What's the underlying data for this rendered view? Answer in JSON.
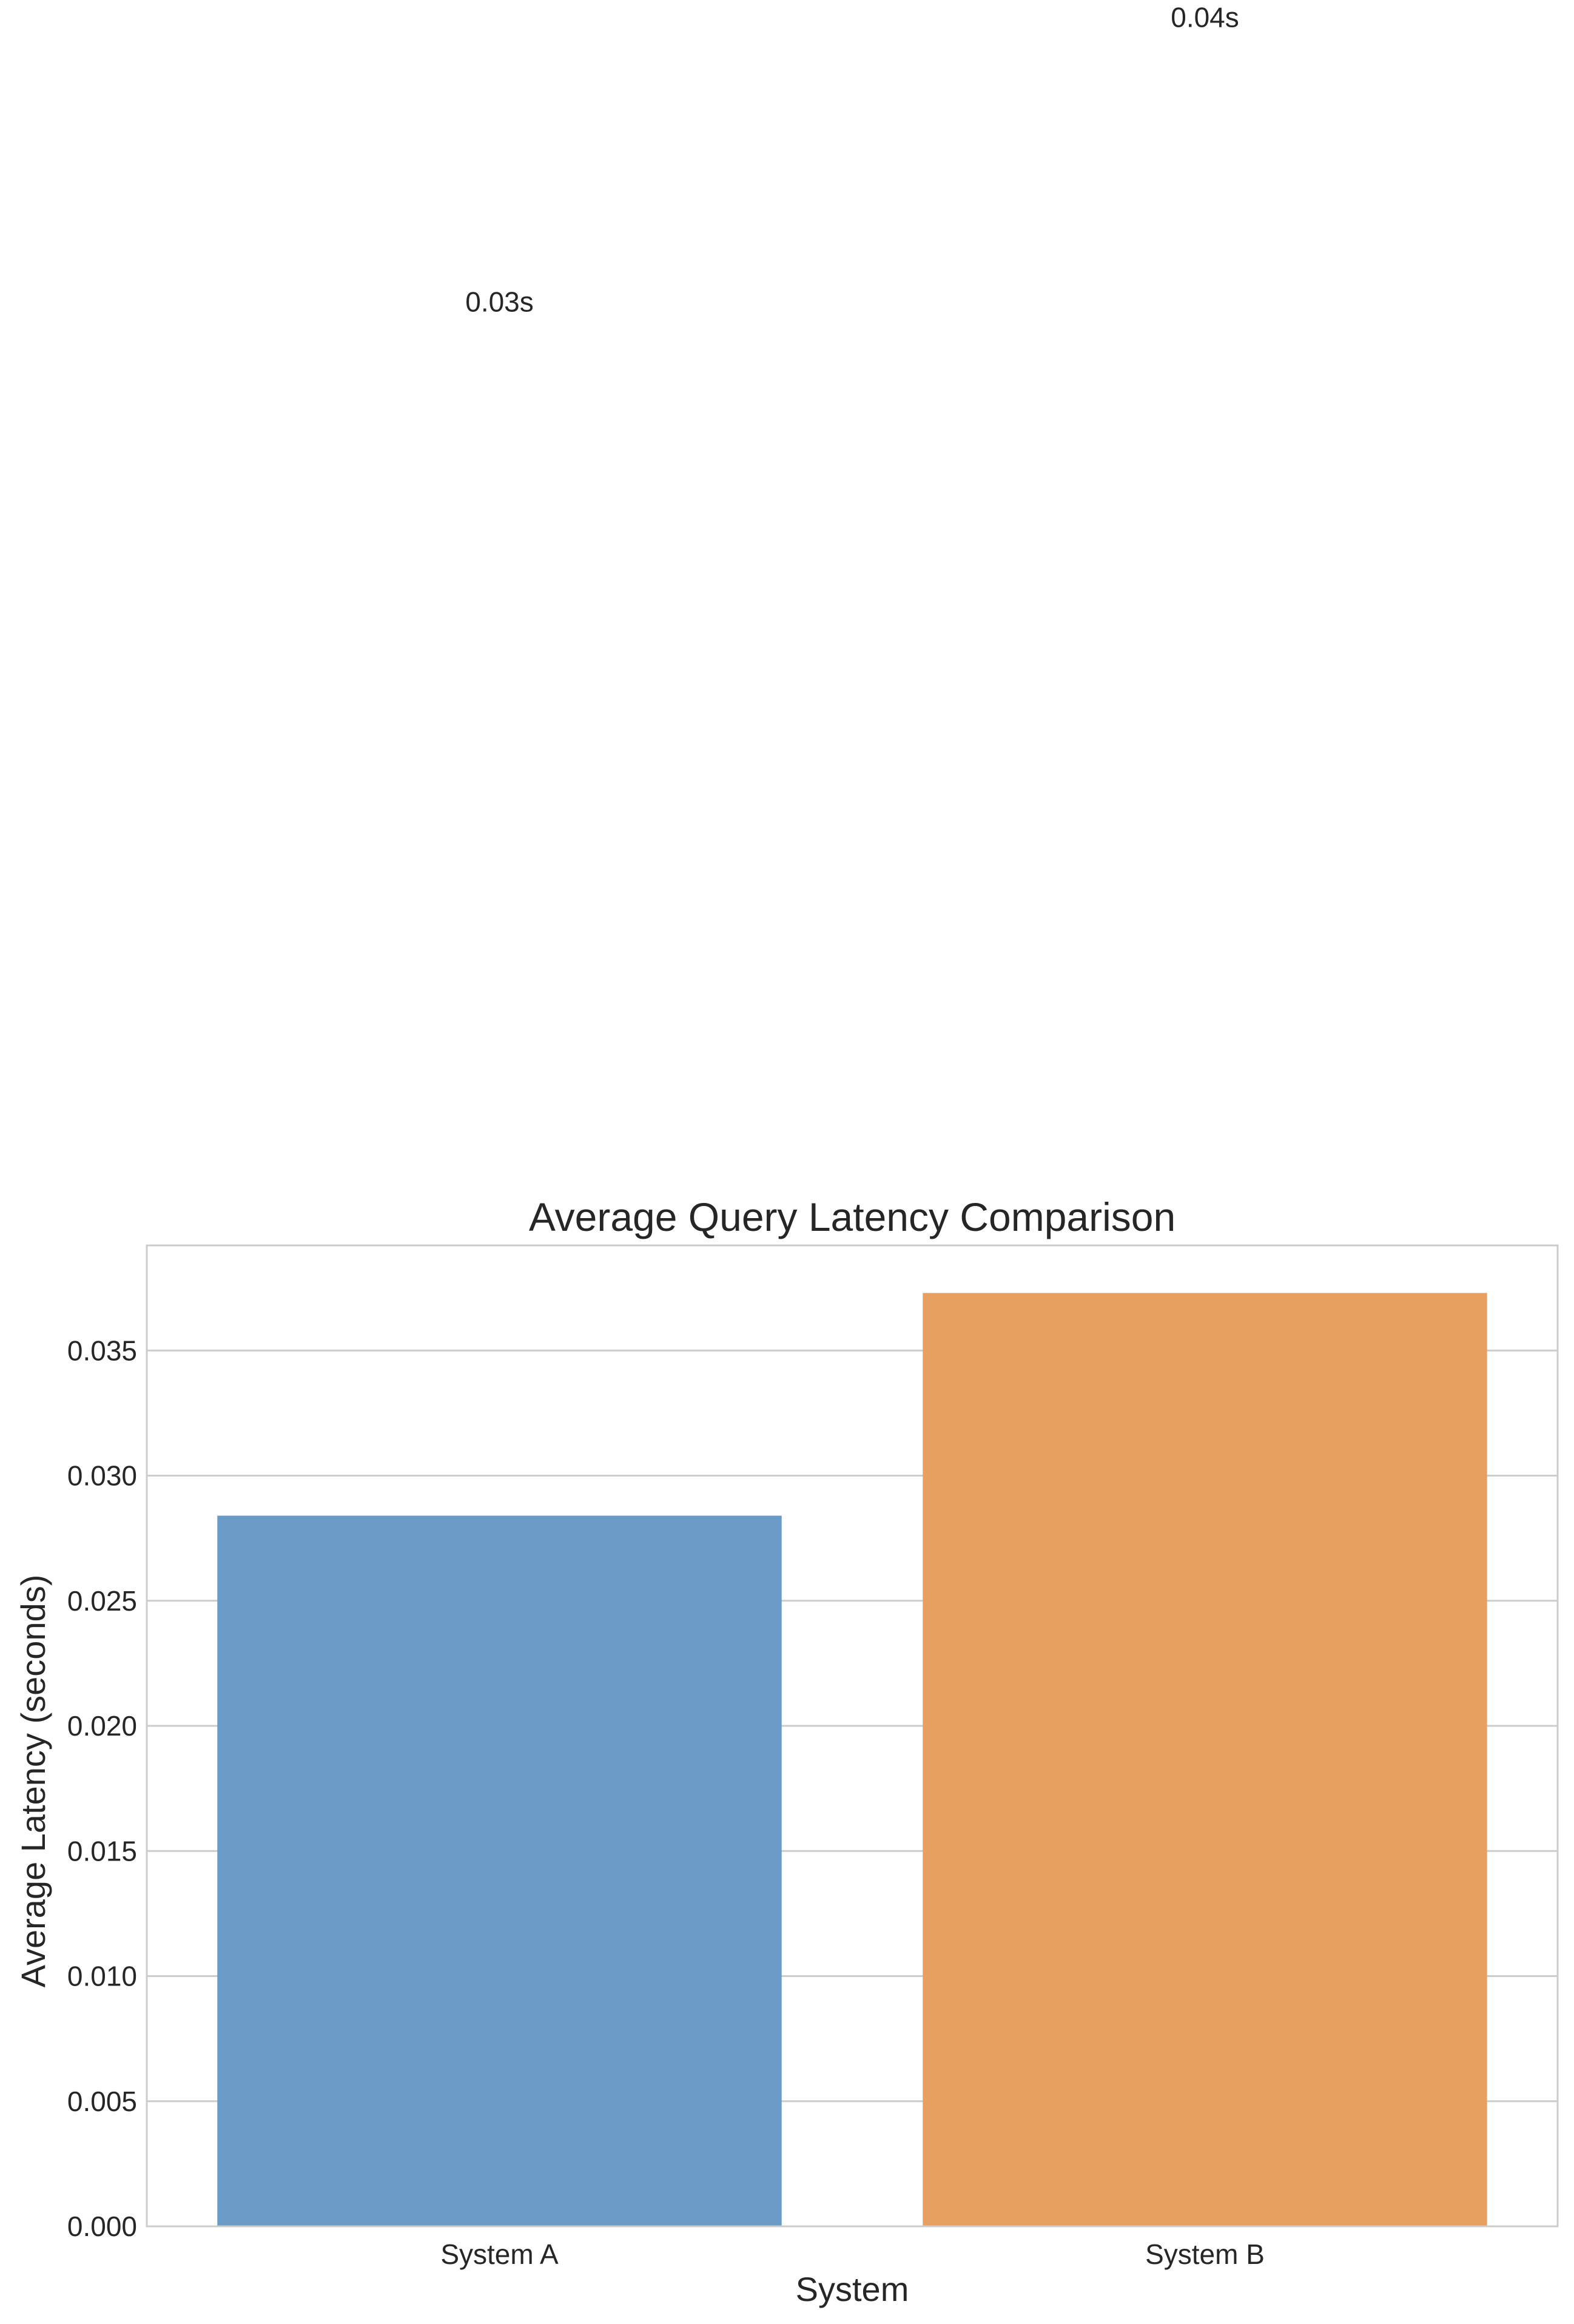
{
  "chart_data": {
    "type": "bar",
    "title": "Average Query Latency Comparison",
    "xlabel": "System",
    "ylabel": "Average Latency (seconds)",
    "categories": [
      "System A",
      "System B"
    ],
    "values": [
      0.0284,
      0.0373
    ],
    "data_labels": [
      "0.03s",
      "0.04s"
    ],
    "colors": [
      "#6a9bc7",
      "#e8a061"
    ],
    "ylim": [
      0,
      0.0392
    ],
    "yticks": [
      0.0,
      0.005,
      0.01,
      0.015,
      0.02,
      0.025,
      0.03,
      0.035
    ],
    "ytick_labels": [
      "0.000",
      "0.005",
      "0.010",
      "0.015",
      "0.020",
      "0.025",
      "0.030",
      "0.035"
    ],
    "grid": true,
    "legend": "none"
  }
}
